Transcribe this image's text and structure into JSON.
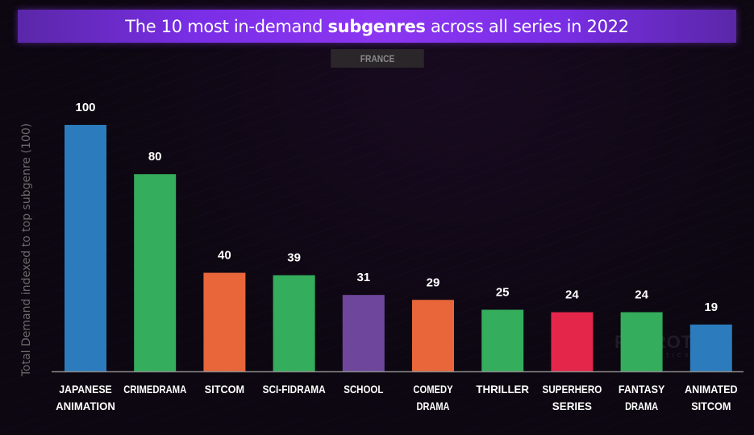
{
  "header": {
    "title_pre": "The 10 most in-demand ",
    "title_bold": "subgenres",
    "title_post": " across all series in 2022",
    "country": "FRANCE"
  },
  "watermark": {
    "brand": "PARROT",
    "sub": "ANALYTICS"
  },
  "chart_data": {
    "type": "bar",
    "title": "The 10 most in-demand subgenres across all series in 2022",
    "subtitle": "FRANCE",
    "xlabel": "",
    "ylabel": "Total Demand indexed to top subgenre (100)",
    "ylim": [
      0,
      100
    ],
    "grid": false,
    "categories": [
      [
        "JAPANESE",
        "ANIMATION"
      ],
      [
        "CRIMEDRAMA"
      ],
      [
        "SITCOM"
      ],
      [
        "SCI-FIDRAMA"
      ],
      [
        "SCHOOL"
      ],
      [
        "COMEDY",
        "DRAMA"
      ],
      [
        "THRILLER"
      ],
      [
        "SUPERHERO",
        "SERIES"
      ],
      [
        "FANTASY",
        "DRAMA"
      ],
      [
        "ANIMATED",
        "SITCOM"
      ]
    ],
    "values": [
      100,
      80,
      40,
      39,
      31,
      29,
      25,
      24,
      24,
      19
    ],
    "colors": [
      "#2b7bbd",
      "#34ad5c",
      "#e8663a",
      "#34ad5c",
      "#6e469c",
      "#e8663a",
      "#34ad5c",
      "#e4264b",
      "#34ad5c",
      "#2b7bbd"
    ]
  }
}
